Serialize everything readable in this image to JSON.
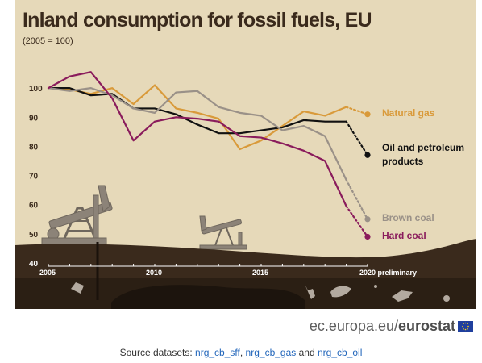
{
  "page": {
    "title": "Inland consumption for fossil fuels, EU",
    "subtitle": "(2005 = 100)",
    "footer_url_prefix": "ec.europa.eu/",
    "footer_brand": "eurostat",
    "source_label": "Source datasets:",
    "source_links": [
      "nrg_cb_sff",
      "nrg_cb_gas",
      "nrg_cb_oil"
    ],
    "source_separator_1": ",",
    "source_separator_2": "and",
    "colors": {
      "background": "#e6d9b9",
      "ground": "#3a2a1c",
      "text": "#3a2a1c",
      "link": "#2266bb"
    }
  },
  "chart_data": {
    "type": "line",
    "title": "Inland consumption for fossil fuels, EU",
    "subtitle": "(2005 = 100)",
    "xlabel": "",
    "ylabel": "",
    "x": [
      2005,
      2006,
      2007,
      2008,
      2009,
      2010,
      2011,
      2012,
      2013,
      2014,
      2015,
      2016,
      2017,
      2018,
      2019,
      2020
    ],
    "x_ticks": [
      "2005",
      "2010",
      "2015",
      "2020 preliminary"
    ],
    "x_tick_values": [
      2005,
      2010,
      2015,
      2020
    ],
    "y_ticks": [
      40,
      50,
      60,
      70,
      80,
      90,
      100
    ],
    "ylim": [
      40,
      110
    ],
    "xlim": [
      2005,
      2020
    ],
    "grid": false,
    "legend_placement": "right, next to line ends",
    "preliminary_from": 2019,
    "series": [
      {
        "name": "Natural gas",
        "color": "#d99a3a",
        "values": [
          100,
          99.5,
          98,
          100,
          94.5,
          101,
          93,
          91.5,
          89.5,
          79,
          82,
          87,
          92,
          90.5,
          93.5,
          91
        ]
      },
      {
        "name": "Oil and petroleum products",
        "color": "#111111",
        "values": [
          100,
          100,
          97.5,
          98,
          93,
          93,
          91,
          87.5,
          84.5,
          84.5,
          85.5,
          86.5,
          89,
          88.5,
          88.5,
          77
        ]
      },
      {
        "name": "Brown coal",
        "color": "#9a9188",
        "values": [
          100,
          99,
          100,
          97.5,
          93,
          91.5,
          98.5,
          99,
          93.5,
          91.5,
          90.5,
          85.5,
          87,
          83.5,
          68.5,
          55
        ]
      },
      {
        "name": "Hard coal",
        "color": "#8a1c5c",
        "values": [
          100,
          104,
          105.5,
          96.5,
          82,
          88.5,
          90,
          89.5,
          88.5,
          83.5,
          83,
          81,
          78.5,
          75,
          59.5,
          49
        ]
      }
    ]
  }
}
